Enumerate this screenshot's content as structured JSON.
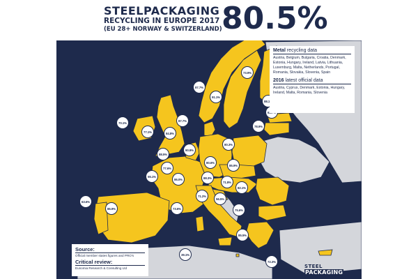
{
  "header": {
    "title_main": "STEELPACKAGING",
    "title_sub": "RECYCLING IN EUROPE 2017",
    "title_scope": "(EU 28+ NORWAY & SWITZERLAND)",
    "headline_rate": "80.5%"
  },
  "legend": {
    "metal_label_bold": "Metal",
    "metal_label_rest": " recycling data",
    "metal_countries": "Austria, Belgium, Bulgaria, Croatia, Denmark, Estonia, Hungary, Ireland, Latvia, Lithuania, Luxemburg, Malta, Netherlands, Portugal, Romania, Slovakia, Slovenia, Spain",
    "latest_label_bold": "2016",
    "latest_label_rest": " latest official data",
    "latest_countries": "Austria, Cyprus, Denmark, Estonia, Hungary, Ireland, Malta, Romania, Slovenia"
  },
  "source": {
    "source_label": "Source:",
    "source_text": "Official member states figures and PRO's",
    "review_label": "Critical review:",
    "review_text": "Eunomia Research & Consulting Ltd"
  },
  "logo": {
    "line1": "STEEL",
    "line2": "PACKAGING"
  },
  "rates": [
    "73.9%",
    "87.7%",
    "91.1%",
    "88.1%",
    "63.7%",
    "78.9%",
    "70.1%",
    "77.1%",
    "84.8%",
    "87.7%",
    "80.3%",
    "88.5%",
    "77.6%",
    "90.9%",
    "80.6%",
    "55.1%",
    "86.0%",
    "85.9%",
    "88.3%",
    "71.8%",
    "82.1%",
    "63.6%",
    "86.9%",
    "71.2%",
    "73.6%",
    "56.5%",
    "75.6%",
    "85.5%",
    "39.1%",
    "72.3%"
  ],
  "colors": {
    "navy": "#1e2a4c",
    "yellow": "#f5c51e",
    "grey_land": "#d4d6db",
    "white": "#ffffff"
  }
}
